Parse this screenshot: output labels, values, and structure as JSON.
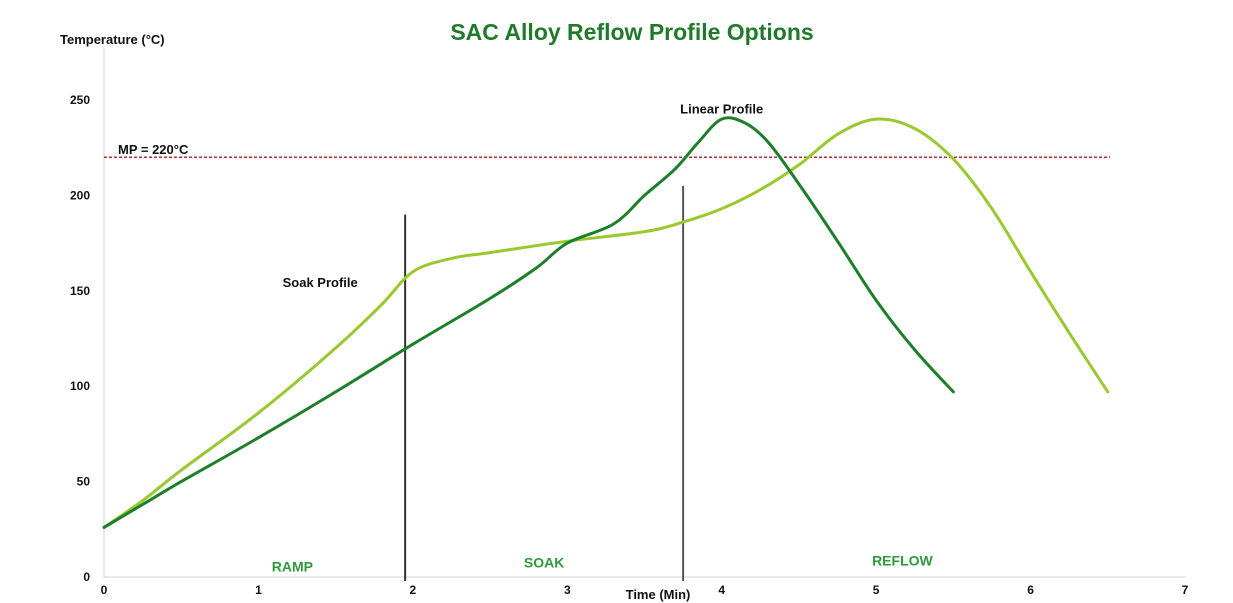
{
  "chart_data": {
    "type": "line",
    "title": "SAC Alloy Reflow Profile Options",
    "xlabel": "Time (Min)",
    "ylabel": "Temperature (°C)",
    "xlim": [
      0,
      7
    ],
    "ylim": [
      0,
      250
    ],
    "x_ticks": [
      0,
      1,
      2,
      3,
      4,
      5,
      6,
      7
    ],
    "y_ticks": [
      0,
      50,
      100,
      150,
      200,
      250
    ],
    "grid": false,
    "legend": "none",
    "series": [
      {
        "name": "Linear Profile",
        "color": "#1e7f2a",
        "x": [
          0,
          0.25,
          0.5,
          1.0,
          1.5,
          2.0,
          2.5,
          2.8,
          3.0,
          3.3,
          3.5,
          3.7,
          3.85,
          4.0,
          4.15,
          4.3,
          4.5,
          4.75,
          5.0,
          5.25,
          5.5
        ],
        "y": [
          26,
          38,
          50,
          73,
          97,
          122,
          146,
          162,
          175,
          185,
          200,
          214,
          228,
          240,
          238,
          228,
          206,
          176,
          145,
          119,
          97
        ]
      },
      {
        "name": "Soak Profile",
        "color": "#99c92e",
        "x": [
          0,
          0.25,
          0.5,
          1.0,
          1.5,
          1.8,
          2.0,
          2.25,
          2.5,
          3.0,
          3.5,
          3.75,
          4.0,
          4.25,
          4.5,
          4.75,
          5.0,
          5.25,
          5.5,
          5.75,
          6.0,
          6.25,
          6.5
        ],
        "y": [
          26,
          40,
          56,
          86,
          120,
          143,
          160,
          167,
          170,
          176,
          181,
          186,
          193,
          203,
          216,
          232,
          240,
          235,
          219,
          193,
          160,
          128,
          97
        ]
      }
    ],
    "reference_lines": [
      {
        "label": "MP = 220°C",
        "y": 220,
        "color": "#b03030"
      }
    ],
    "phase_dividers": [
      {
        "x": 1.95,
        "y_top": 190,
        "color": "#333333"
      },
      {
        "x": 3.75,
        "y_top": 205,
        "color": "#555555"
      }
    ],
    "annotations": [
      {
        "text": "Linear Profile",
        "x": 4.0,
        "y": 243
      },
      {
        "text": "Soak Profile",
        "x": 1.4,
        "y": 152
      }
    ],
    "phase_labels": [
      {
        "text": "RAMP",
        "x": 1.22,
        "y": 3
      },
      {
        "text": "SOAK",
        "x": 2.85,
        "y": 5
      },
      {
        "text": "REFLOW",
        "x": 5.17,
        "y": 6
      }
    ]
  }
}
